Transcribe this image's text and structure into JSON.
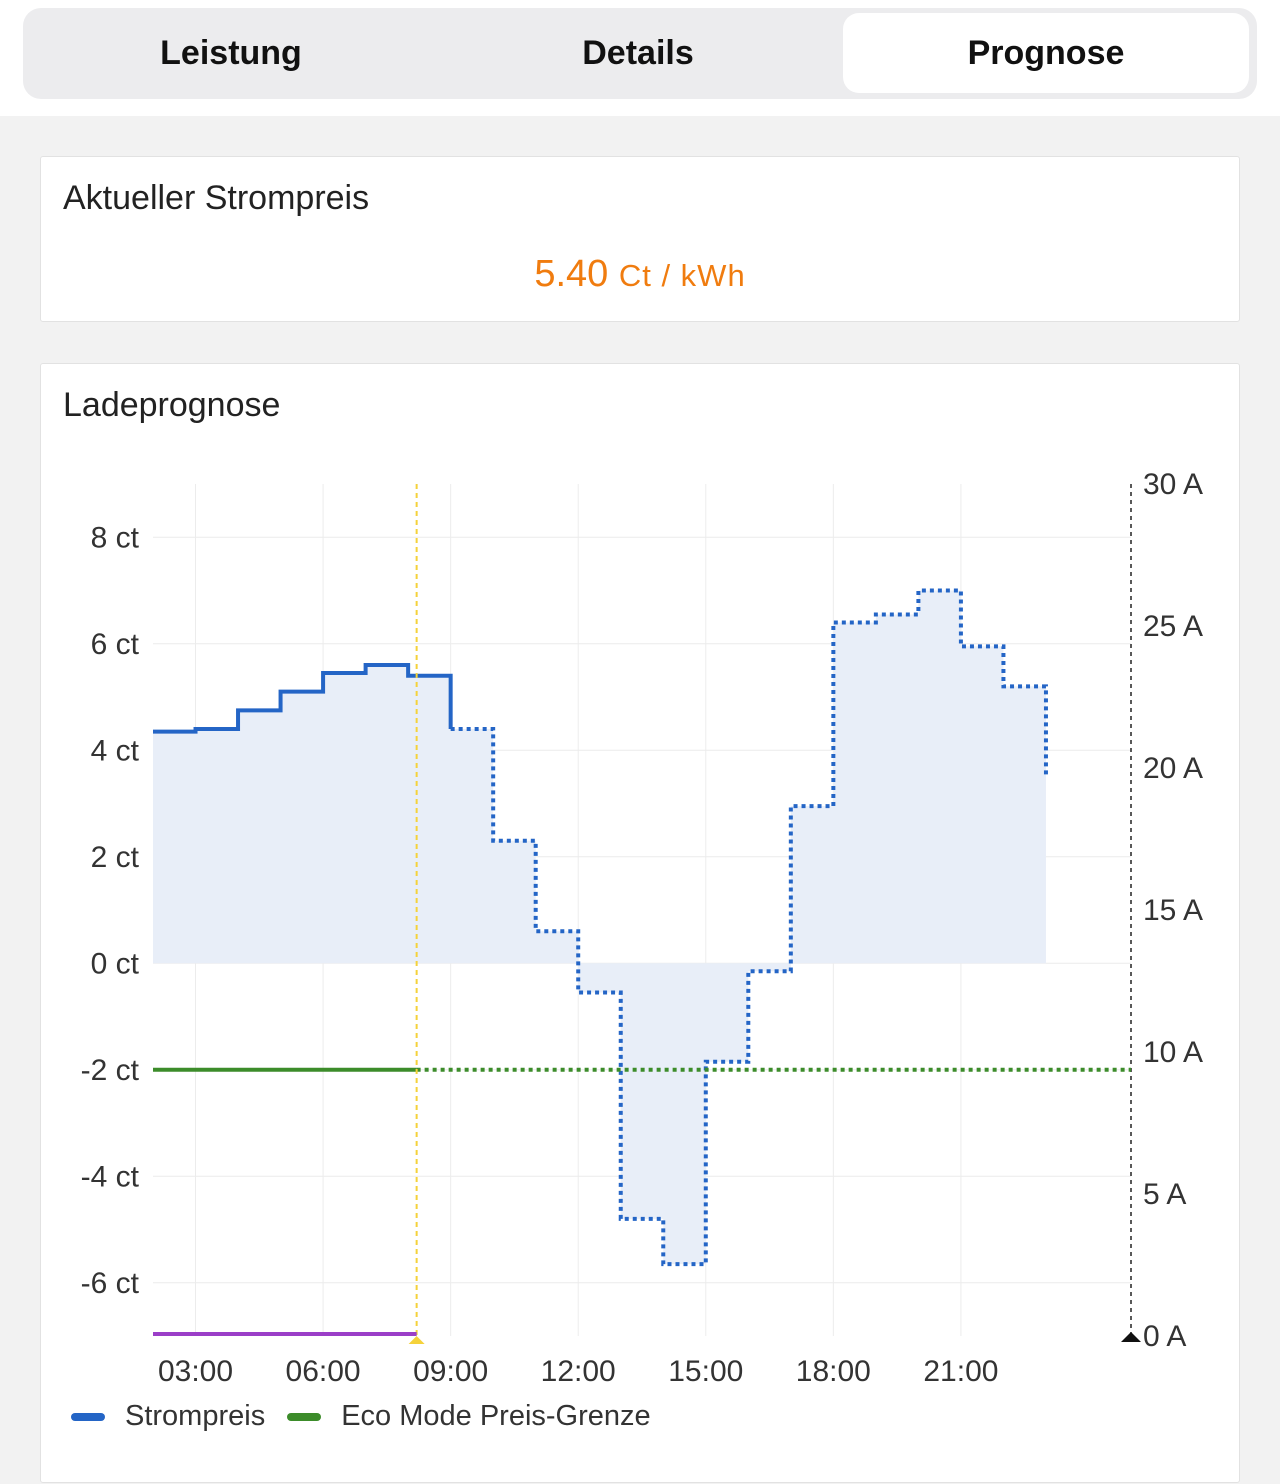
{
  "tabs": [
    {
      "label": "Leistung",
      "active": false
    },
    {
      "label": "Details",
      "active": false
    },
    {
      "label": "Prognose",
      "active": true
    }
  ],
  "price_card": {
    "title": "Aktueller Strompreis",
    "value": "5.40",
    "unit": "Ct / kWh",
    "color": "#f07c0f"
  },
  "forecast_card": {
    "title": "Ladeprognose"
  },
  "chart_data": {
    "type": "line",
    "step": true,
    "grid": true,
    "legend_position": "bottom-left",
    "x_ticks": [
      "03:00",
      "06:00",
      "09:00",
      "12:00",
      "15:00",
      "18:00",
      "21:00"
    ],
    "x_range_hours": [
      2,
      25
    ],
    "y_left": {
      "ticks": [
        "8 ct",
        "6 ct",
        "4 ct",
        "2 ct",
        "0 ct",
        "-2 ct",
        "-4 ct",
        "-6 ct"
      ],
      "tick_values": [
        8,
        6,
        4,
        2,
        0,
        -2,
        -4,
        -6
      ],
      "range": [
        -7,
        9
      ]
    },
    "y_right": {
      "ticks": [
        "30 A",
        "25 A",
        "20 A",
        "15 A",
        "10 A",
        "5 A",
        "0 A"
      ],
      "tick_values": [
        30,
        25,
        20,
        15,
        10,
        5,
        0
      ],
      "range": [
        0,
        30
      ]
    },
    "now_hour": 8.2,
    "series": [
      {
        "name": "Strompreis",
        "color": "#2465c6",
        "fill": "#e8eef8",
        "hours": [
          2,
          3,
          4,
          5,
          6,
          7,
          8,
          8.2,
          9,
          10,
          11,
          12,
          13,
          14,
          15,
          16,
          17,
          18,
          19,
          20,
          21,
          22,
          23
        ],
        "values": [
          4.35,
          4.4,
          4.75,
          5.1,
          5.45,
          5.6,
          5.4,
          5.4,
          4.4,
          2.3,
          0.6,
          -0.55,
          -4.8,
          -5.65,
          -1.85,
          -0.15,
          2.95,
          6.4,
          6.55,
          7.0,
          5.95,
          5.2,
          3.5
        ],
        "measured_until_hour": 9
      },
      {
        "name": "Eco Mode Preis-Grenze",
        "color": "#3c8c2a",
        "value": -2,
        "measured_until_hour": 8.2
      },
      {
        "color": "#9b3ec8",
        "axis": "right",
        "value": 0,
        "from_hour": 2,
        "to_hour": 8.2
      }
    ]
  }
}
